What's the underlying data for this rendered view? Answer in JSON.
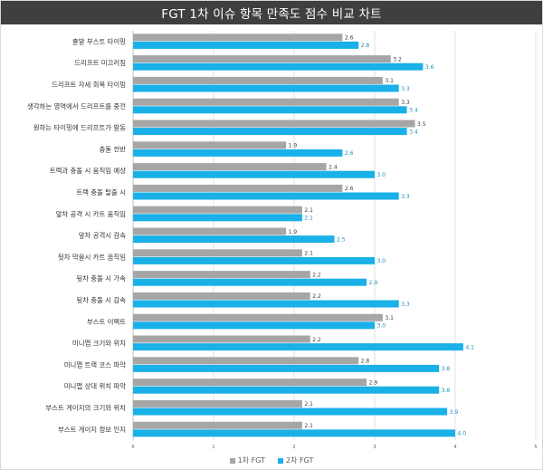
{
  "chart_data": {
    "type": "bar",
    "orientation": "horizontal",
    "title": "FGT 1차 이슈 항목 만족도 점수 비교 차트",
    "categories": [
      "출발 부스트 타이밍",
      "드리프트 미끄러짐",
      "드리프트 자세 회복 타이밍",
      "생각하는 영역에서 드리프트를 중전",
      "원하는 타이밍에 드리프트가 발동",
      "충돌 전반",
      "트랙과 충돌 시 움직임 예상",
      "트랙 충돌 탈출 시",
      "앞차 공격 시 카트 움직임",
      "앞차 공격시 감속",
      "뒷차 막을시 카트 움직임",
      "뒷차 충돌 시 가속",
      "뒷차 충돌 시 감속",
      "부스트 이펙트",
      "미니맵 크기와 위치",
      "미니맵 트랙 코스 파악",
      "미니맵 상대 위치 파악",
      "부스트 게이지의 크기와 위치",
      "부스트 게이지 정보 인지"
    ],
    "series": [
      {
        "name": "1차 FGT",
        "color": "#a6a6a6",
        "values": [
          2.6,
          3.2,
          3.1,
          3.3,
          3.5,
          1.9,
          2.4,
          2.6,
          2.1,
          1.9,
          2.1,
          2.2,
          2.2,
          3.1,
          2.2,
          2.8,
          2.9,
          2.1,
          2.1
        ]
      },
      {
        "name": "2차 FGT",
        "color": "#1ab0e8",
        "values": [
          2.8,
          3.6,
          3.3,
          3.4,
          3.4,
          2.6,
          3.0,
          3.3,
          2.1,
          2.5,
          3.0,
          2.9,
          3.3,
          3.0,
          4.1,
          3.8,
          3.8,
          3.9,
          4.0
        ]
      }
    ],
    "xlim": [
      0,
      5
    ],
    "x_ticks": [
      "0",
      "1",
      "2",
      "3",
      "4",
      "5"
    ],
    "grid": true,
    "legend_position": "bottom"
  }
}
